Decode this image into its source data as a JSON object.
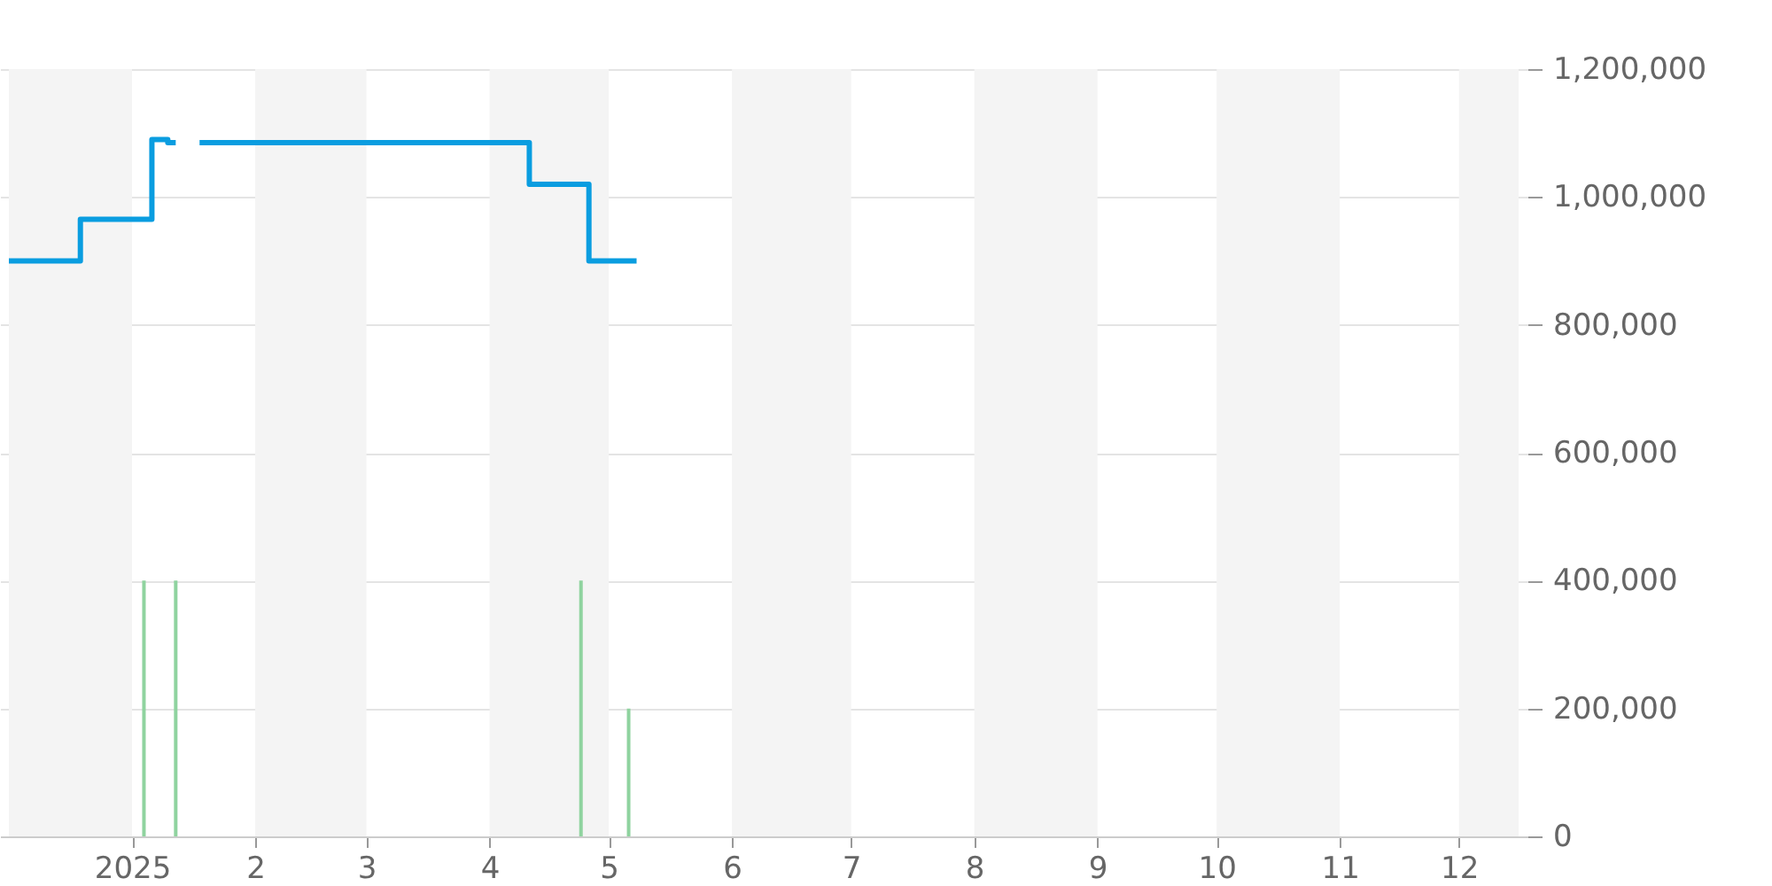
{
  "chart_data": {
    "type": "step",
    "xlim": [
      "2024-12-01",
      "2025-12-16"
    ],
    "ylim": [
      0,
      1200000
    ],
    "xticks": [
      {
        "value": "2025-01-01",
        "label": "2025"
      },
      {
        "value": "2025-02-01",
        "label": "2"
      },
      {
        "value": "2025-03-01",
        "label": "3"
      },
      {
        "value": "2025-04-01",
        "label": "4"
      },
      {
        "value": "2025-05-01",
        "label": "5"
      },
      {
        "value": "2025-06-01",
        "label": "6"
      },
      {
        "value": "2025-07-01",
        "label": "7"
      },
      {
        "value": "2025-08-01",
        "label": "8"
      },
      {
        "value": "2025-09-01",
        "label": "9"
      },
      {
        "value": "2025-10-01",
        "label": "10"
      },
      {
        "value": "2025-11-01",
        "label": "11"
      },
      {
        "value": "2025-12-01",
        "label": "12"
      }
    ],
    "yticks": [
      0,
      {
        "value": 200000,
        "label": "200,000"
      },
      {
        "value": 400000,
        "label": "400,000"
      },
      {
        "value": 600000,
        "label": "600,000"
      },
      {
        "value": 800000,
        "label": "800,000"
      },
      {
        "value": 1000000,
        "label": "1,000,000"
      },
      {
        "value": 1200000,
        "label": "1,200,000"
      }
    ],
    "grid": "y",
    "line_style": "solid",
    "marker": "none",
    "bands": [
      {
        "axis": "x",
        "from": "2024-12-01",
        "to": "2025-01-01",
        "color": "#f4f4f4"
      },
      {
        "axis": "x",
        "from": "2025-02-01",
        "to": "2025-03-01",
        "color": "#f4f4f4"
      },
      {
        "axis": "x",
        "from": "2025-04-01",
        "to": "2025-05-01",
        "color": "#f4f4f4"
      },
      {
        "axis": "x",
        "from": "2025-06-01",
        "to": "2025-07-01",
        "color": "#f4f4f4"
      },
      {
        "axis": "x",
        "from": "2025-08-01",
        "to": "2025-09-01",
        "color": "#f4f4f4"
      },
      {
        "axis": "x",
        "from": "2025-10-01",
        "to": "2025-11-01",
        "color": "#f4f4f4"
      },
      {
        "axis": "x",
        "from": "2025-12-01",
        "to": "2025-12-16",
        "color": "#f4f4f4"
      }
    ],
    "series": [
      {
        "color": "#0a9de0",
        "x": [
          "2024-12-01",
          "2024-12-19",
          "2025-01-06",
          "2025-01-10",
          "2025-01-12",
          "2025-01-14",
          "2025-01-18",
          "2025-04-11",
          "2025-04-26",
          "2025-05-08"
        ],
        "values": [
          900000,
          965000,
          1090000,
          1085000,
          1085000,
          null,
          1085000,
          1020000,
          900000,
          900000
        ]
      },
      {
        "type": "bar",
        "color": "#8fd39f",
        "x": [
          "2025-01-04",
          "2025-01-12",
          "2025-04-24",
          "2025-05-06"
        ],
        "values": [
          400000,
          400000,
          400000,
          200000
        ]
      }
    ]
  }
}
